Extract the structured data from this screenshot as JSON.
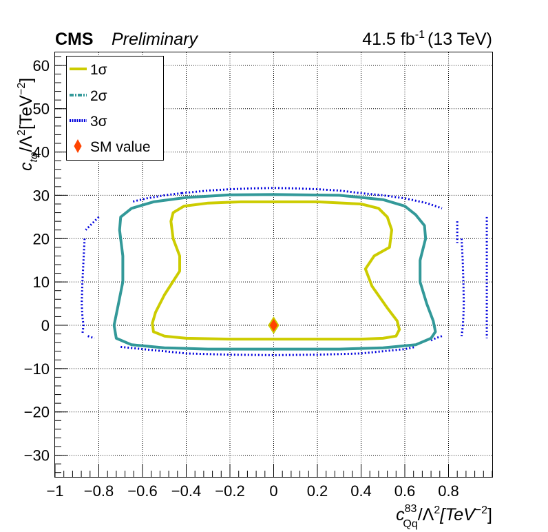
{
  "header": {
    "experiment": "CMS",
    "status": "Preliminary",
    "lumi": "41.5 fb",
    "lumi_exp": "-1",
    "energy": "(13 TeV)"
  },
  "chart_data": {
    "type": "contour",
    "xlabel": {
      "c": "c",
      "sup": "83",
      "sub": "Qq",
      "rest": "/Λ",
      "sq": "2",
      "unit": "[TeV",
      "unit_exp": "−2",
      "close": "]"
    },
    "ylabel": {
      "c": "c",
      "sub": "tφ",
      "rest": "/Λ",
      "sq": "2",
      "unit": "[TeV",
      "unit_exp": "−2",
      "close": "]"
    },
    "xlim": [
      -1,
      1
    ],
    "ylim": [
      -35,
      63
    ],
    "x_ticks": [
      -1,
      -0.8,
      -0.6,
      -0.4,
      -0.2,
      0,
      0.2,
      0.4,
      0.6,
      0.8
    ],
    "x_tick_labels": [
      "−1",
      "−0.8",
      "−0.6",
      "−0.4",
      "−0.2",
      "0",
      "0.2",
      "0.4",
      "0.6",
      "0.8"
    ],
    "y_ticks": [
      -30,
      -20,
      -10,
      0,
      10,
      20,
      30,
      40,
      50,
      60
    ],
    "y_tick_labels": [
      "−30",
      "−20",
      "−10",
      "0",
      "10",
      "20",
      "30",
      "40",
      "50",
      "60"
    ],
    "grid": true,
    "legend_position": "top-left",
    "legend": [
      {
        "label": "1σ",
        "style": "solid",
        "color": "#cccc00"
      },
      {
        "label": "2σ",
        "style": "dashdot",
        "color": "#339999"
      },
      {
        "label": "3σ",
        "style": "dotted",
        "color": "#0000dd"
      },
      {
        "label": "SM value",
        "style": "marker",
        "color": "#ff4400"
      }
    ],
    "series": [
      {
        "name": "1σ",
        "color": "#cccc00",
        "x": [
          0.0,
          0.2,
          0.4,
          0.48,
          0.52,
          0.54,
          0.53,
          0.46,
          0.42,
          0.45,
          0.52,
          0.565,
          0.575,
          0.56,
          0.5,
          0.4,
          0.2,
          0.0,
          -0.2,
          -0.4,
          -0.5,
          -0.55,
          -0.555,
          -0.54,
          -0.5,
          -0.43,
          -0.43,
          -0.46,
          -0.47,
          -0.46,
          -0.41,
          -0.3,
          -0.15,
          0.0
        ],
        "y": [
          28.5,
          28.5,
          28.0,
          27.0,
          25.0,
          22.0,
          18.0,
          16.0,
          13.0,
          9.0,
          4.0,
          1.0,
          -1.0,
          -2.5,
          -3.0,
          -3.2,
          -3.2,
          -3.2,
          -3.2,
          -3.0,
          -2.5,
          -1.5,
          0.5,
          3.0,
          7.0,
          12.5,
          16.0,
          20.0,
          24.0,
          26.0,
          27.5,
          28.2,
          28.5,
          28.5
        ]
      },
      {
        "name": "2σ",
        "color": "#339999",
        "x": [
          0.0,
          0.3,
          0.5,
          0.6,
          0.65,
          0.69,
          0.695,
          0.67,
          0.67,
          0.7,
          0.73,
          0.74,
          0.72,
          0.65,
          0.5,
          0.3,
          0.0,
          -0.3,
          -0.5,
          -0.65,
          -0.72,
          -0.73,
          -0.71,
          -0.69,
          -0.69,
          -0.705,
          -0.7,
          -0.65,
          -0.55,
          -0.4,
          -0.2,
          0.0
        ],
        "y": [
          30.2,
          30.0,
          29.0,
          27.5,
          25.5,
          23.0,
          20.0,
          15.0,
          10.0,
          5.0,
          1.0,
          -1.5,
          -3.0,
          -4.5,
          -5.2,
          -5.5,
          -5.5,
          -5.5,
          -5.2,
          -4.5,
          -3.0,
          0.0,
          5.0,
          10.0,
          16.0,
          22.0,
          25.0,
          27.0,
          28.5,
          29.5,
          30.1,
          30.2
        ]
      },
      {
        "name": "3σ",
        "color": "#0000dd",
        "segments": [
          {
            "x": [
              -0.42,
              -0.3,
              -0.2,
              -0.1,
              0.0,
              0.1,
              0.2,
              0.3,
              0.4,
              0.5,
              0.6,
              0.7,
              0.77
            ],
            "y": [
              30.5,
              31.1,
              31.4,
              31.6,
              31.7,
              31.6,
              31.4,
              31.1,
              30.5,
              30.0,
              29.3,
              28.2,
              27.0
            ]
          },
          {
            "x": [
              -0.42,
              -0.5,
              -0.58,
              -0.65
            ],
            "y": [
              30.5,
              30.0,
              29.3,
              28.5
            ]
          },
          {
            "x": [
              -0.8,
              -0.83,
              -0.86
            ],
            "y": [
              25.0,
              23.5,
              22.0
            ]
          },
          {
            "x": [
              -0.865,
              -0.87,
              -0.875,
              -0.878,
              -0.875,
              -0.87,
              -0.875
            ],
            "y": [
              20.0,
              15.0,
              10.0,
              5.0,
              2.0,
              0.0,
              -2.0
            ]
          },
          {
            "x": [
              -0.85,
              -0.82
            ],
            "y": [
              -2.5,
              -3.0
            ]
          },
          {
            "x": [
              -0.7,
              -0.6,
              -0.5,
              -0.4,
              -0.2,
              0.0,
              0.2,
              0.4,
              0.5,
              0.6,
              0.65
            ],
            "y": [
              -5.0,
              -5.5,
              -6.0,
              -6.5,
              -6.8,
              -6.9,
              -6.8,
              -6.5,
              -6.0,
              -5.5,
              -5.0
            ]
          },
          {
            "x": [
              0.72,
              0.74,
              0.77
            ],
            "y": [
              -3.5,
              -3.0,
              -2.5
            ]
          },
          {
            "x": [
              0.84,
              0.84,
              0.84,
              0.84,
              0.84
            ],
            "y": [
              24.0,
              23.0,
              21.0,
              20.0,
              19.0
            ]
          },
          {
            "x": [
              0.86,
              0.865,
              0.868,
              0.87,
              0.868,
              0.865,
              0.86
            ],
            "y": [
              20.0,
              15.0,
              10.0,
              5.0,
              2.0,
              -0.5,
              -2.5
            ]
          },
          {
            "x": [
              0.975,
              0.975,
              0.975,
              0.975,
              0.975,
              0.975,
              0.975,
              0.975
            ],
            "y": [
              25.0,
              20.0,
              15.0,
              10.0,
              5.0,
              0.0,
              -2.0,
              -3.0
            ]
          }
        ]
      }
    ],
    "sm_value": {
      "x": 0,
      "y": 0
    }
  }
}
